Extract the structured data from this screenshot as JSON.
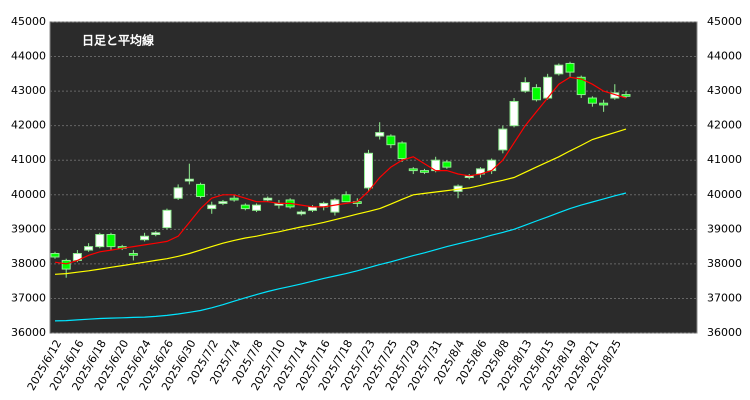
{
  "chart_data": {
    "type": "candlestick",
    "title": "日足と平均線",
    "categories": [
      "2025/6/12",
      null,
      "2025/6/16",
      null,
      "2025/6/18",
      null,
      "2025/6/20",
      null,
      "2025/6/24",
      null,
      "2025/6/26",
      null,
      "2025/6/30",
      null,
      "2025/7/2",
      null,
      "2025/7/4",
      null,
      "2025/7/8",
      null,
      "2025/7/10",
      null,
      "2025/7/14",
      null,
      "2025/7/16",
      null,
      "2025/7/18",
      null,
      "2025/7/23",
      null,
      "2025/7/25",
      null,
      "2025/7/29",
      null,
      "2025/7/31",
      null,
      "2025/8/4",
      null,
      "2025/8/6",
      null,
      "2025/8/8",
      null,
      "2025/8/13",
      null,
      "2025/8/15",
      null,
      "2025/8/19",
      null,
      "2025/8/21",
      null,
      "2025/8/25",
      null
    ],
    "open": [
      38300,
      38100,
      38100,
      38400,
      38500,
      38850,
      38500,
      38300,
      38700,
      38850,
      39050,
      39900,
      40400,
      40300,
      39600,
      39750,
      39900,
      39700,
      39550,
      39850,
      39700,
      39850,
      39450,
      39550,
      39650,
      39500,
      40000,
      39800,
      40200,
      41700,
      41700,
      41500,
      40750,
      40700,
      40700,
      40950,
      40100,
      40500,
      40600,
      40700,
      41300,
      42000,
      43000,
      43100,
      42800,
      43500,
      43800,
      43400,
      42800,
      42650,
      42800,
      42900
    ],
    "high": [
      38350,
      38150,
      38400,
      38600,
      38900,
      38900,
      38550,
      38400,
      38900,
      38950,
      39600,
      40300,
      40900,
      40350,
      39800,
      39850,
      40000,
      39750,
      39750,
      39950,
      39850,
      39900,
      39550,
      39700,
      39800,
      39900,
      40100,
      39900,
      41300,
      42100,
      41750,
      41550,
      40800,
      40750,
      41100,
      41000,
      40300,
      40600,
      40800,
      41050,
      42000,
      42800,
      43400,
      43200,
      43500,
      43800,
      43850,
      43450,
      42850,
      42750,
      43200,
      43000
    ],
    "low": [
      38150,
      37600,
      38050,
      38350,
      38450,
      38400,
      38400,
      38100,
      38650,
      38800,
      39000,
      39850,
      40300,
      39900,
      39450,
      39700,
      39800,
      39550,
      39500,
      39800,
      39600,
      39600,
      39400,
      39500,
      39550,
      39400,
      39800,
      39650,
      40100,
      41600,
      41350,
      40950,
      40600,
      40600,
      40650,
      40750,
      39900,
      40450,
      40500,
      40600,
      41200,
      41950,
      42950,
      42700,
      42750,
      43450,
      43400,
      42800,
      42550,
      42400,
      42750,
      42800
    ],
    "close": [
      38200,
      37850,
      38300,
      38500,
      38850,
      38500,
      38450,
      38250,
      38800,
      38900,
      39550,
      40200,
      40450,
      39950,
      39700,
      39800,
      39850,
      39600,
      39700,
      39900,
      39750,
      39650,
      39500,
      39650,
      39750,
      39850,
      39800,
      39750,
      41200,
      41800,
      41450,
      41050,
      40700,
      40650,
      41000,
      40800,
      40250,
      40550,
      40750,
      41000,
      41900,
      42700,
      43250,
      42750,
      43400,
      43750,
      43550,
      42900,
      42650,
      42600,
      42950,
      42850
    ],
    "up_color": "#ffffff",
    "down_color": "#00ff00",
    "wick_color": "#90ee90",
    "lines": [
      {
        "color": "#ff0000",
        "values": [
          38050,
          38000,
          38100,
          38250,
          38350,
          38400,
          38450,
          38500,
          38550,
          38600,
          38650,
          38800,
          39200,
          39600,
          39900,
          40000,
          40000,
          39900,
          39800,
          39800,
          39750,
          39750,
          39700,
          39650,
          39650,
          39700,
          39750,
          39800,
          40100,
          40500,
          40800,
          41000,
          41100,
          40900,
          40700,
          40700,
          40600,
          40550,
          40600,
          40700,
          41000,
          41500,
          42000,
          42400,
          42800,
          43200,
          43400,
          43350,
          43200,
          43000,
          42900,
          42800
        ]
      },
      {
        "color": "#ffff00",
        "values": [
          37700,
          37720,
          37760,
          37800,
          37850,
          37900,
          37950,
          38000,
          38050,
          38100,
          38150,
          38220,
          38300,
          38400,
          38500,
          38600,
          38680,
          38750,
          38800,
          38870,
          38930,
          39000,
          39070,
          39130,
          39200,
          39280,
          39360,
          39440,
          39520,
          39600,
          39730,
          39870,
          40000,
          40040,
          40080,
          40120,
          40160,
          40200,
          40270,
          40350,
          40420,
          40500,
          40650,
          40800,
          40950,
          41100,
          41270,
          41430,
          41600,
          41700,
          41800,
          41900
        ]
      },
      {
        "color": "#00e5ff",
        "values": [
          36350,
          36360,
          36380,
          36400,
          36420,
          36430,
          36440,
          36450,
          36460,
          36480,
          36510,
          36550,
          36600,
          36650,
          36730,
          36820,
          36920,
          37020,
          37110,
          37200,
          37280,
          37350,
          37420,
          37500,
          37580,
          37650,
          37720,
          37800,
          37890,
          37980,
          38060,
          38150,
          38240,
          38320,
          38410,
          38500,
          38580,
          38660,
          38740,
          38830,
          38910,
          39000,
          39120,
          39240,
          39360,
          39480,
          39600,
          39700,
          39790,
          39880,
          39970,
          40050
        ]
      }
    ],
    "ylim": [
      36000,
      45000
    ],
    "yticks": [
      36000,
      37000,
      38000,
      39000,
      40000,
      41000,
      42000,
      43000,
      44000,
      45000
    ],
    "grid": true
  }
}
